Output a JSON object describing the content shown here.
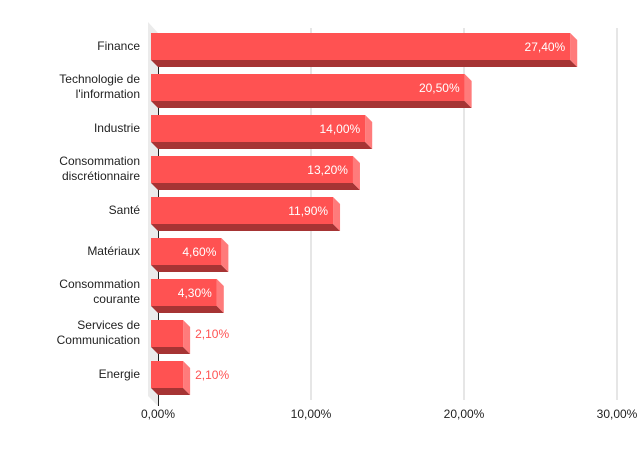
{
  "chart_data": {
    "type": "bar",
    "orientation": "horizontal",
    "style": "3d",
    "title": "",
    "xlabel": "",
    "ylabel": "",
    "categories": [
      "Finance",
      "Technologie de l'information",
      "Industrie",
      "Consommation discrétionnaire",
      "Santé",
      "Matériaux",
      "Consommation courante",
      "Services de Communication",
      "Energie"
    ],
    "category_lines": [
      [
        "Finance"
      ],
      [
        "Technologie de",
        "l'information"
      ],
      [
        "Industrie"
      ],
      [
        "Consommation",
        "discrétionnaire"
      ],
      [
        "Santé"
      ],
      [
        "Matériaux"
      ],
      [
        "Consommation",
        "courante"
      ],
      [
        "Services de",
        "Communication"
      ],
      [
        "Energie"
      ]
    ],
    "values": [
      27.4,
      20.5,
      14.0,
      13.2,
      11.9,
      4.6,
      4.3,
      2.1,
      2.1
    ],
    "value_labels": [
      "27,40%",
      "20,50%",
      "14,00%",
      "13,20%",
      "11,90%",
      "4,60%",
      "4,30%",
      "2,10%",
      "2,10%"
    ],
    "xlim": [
      0,
      30
    ],
    "x_ticks": [
      0,
      10,
      20,
      30
    ],
    "x_tick_labels": [
      "0,00%",
      "10,00%",
      "20,00%",
      "30,00%"
    ],
    "grid": true,
    "legend": null,
    "colors": {
      "bar_front": "#ff5252",
      "bar_side": "#ff7b7b",
      "bar_bottom": "#a63434",
      "label_inside": "#ffffff",
      "label_outside": "#ff5252",
      "grid": "#cccccc",
      "wall": "#ebebeb",
      "axis": "#222222",
      "text": "#222222"
    }
  }
}
